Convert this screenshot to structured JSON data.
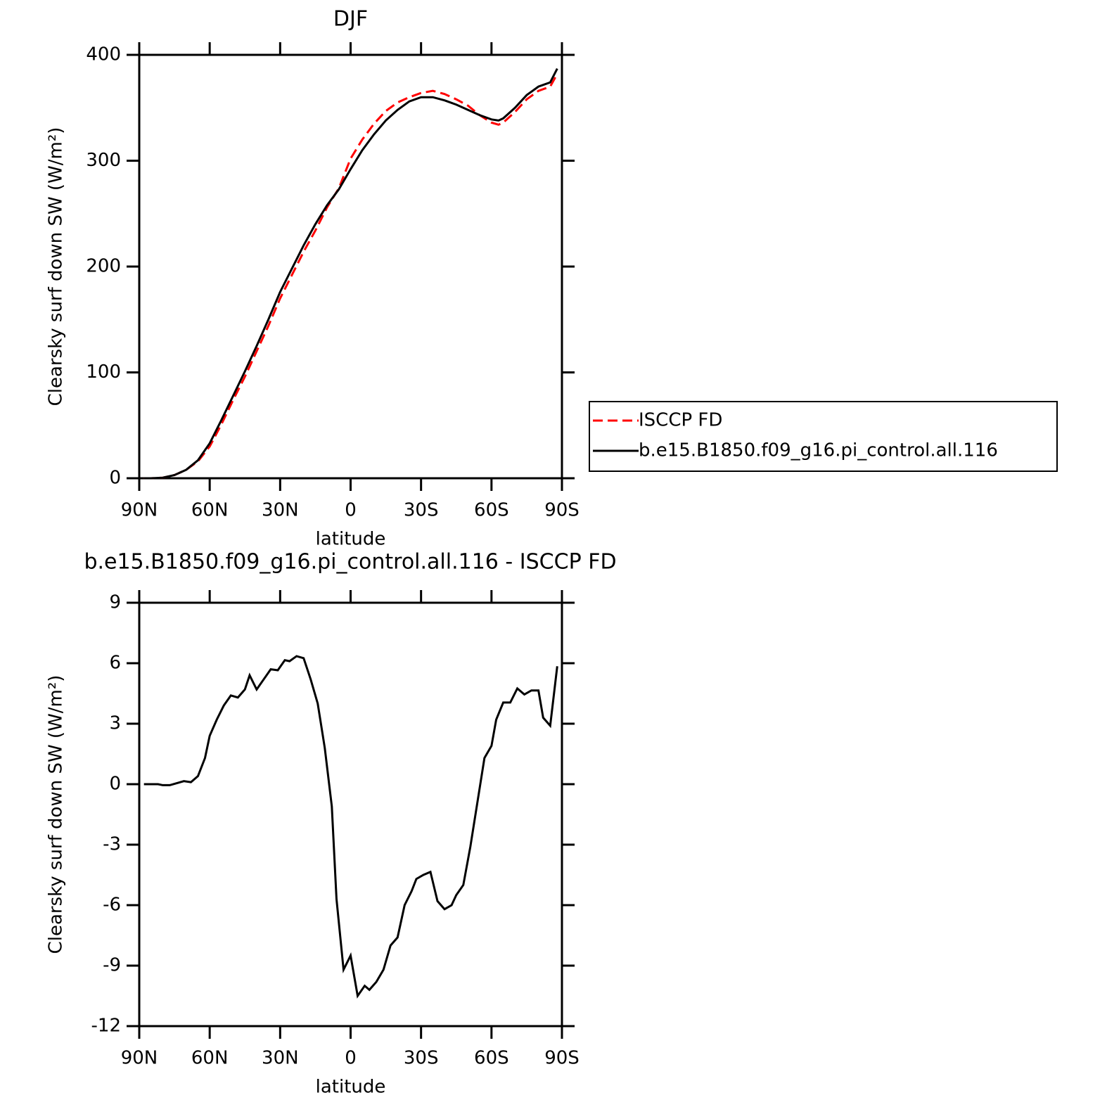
{
  "chart_data": [
    {
      "type": "line",
      "title": "DJF",
      "xlabel": "latitude",
      "ylabel": "Clearsky surf down SW (W/m²)",
      "x": [
        88,
        85,
        80,
        75,
        70,
        65,
        60,
        55,
        50,
        45,
        40,
        35,
        30,
        25,
        20,
        15,
        10,
        5,
        0,
        -5,
        -10,
        -15,
        -20,
        -25,
        -30,
        -35,
        -40,
        -45,
        -50,
        -55,
        -60,
        -63,
        -65,
        -70,
        -75,
        -80,
        -85,
        -88
      ],
      "series": [
        {
          "name": "ISCCP FD",
          "color": "#ff0000",
          "dash": true,
          "values": [
            0,
            0,
            0.5,
            3,
            8,
            16,
            30,
            51,
            74,
            96,
            120,
            144,
            170,
            192,
            214,
            234,
            256,
            274,
            302,
            320,
            335,
            347,
            355,
            360,
            364,
            366,
            363,
            358,
            352,
            343,
            336,
            334,
            336,
            346,
            358,
            366,
            370,
            382
          ]
        },
        {
          "name": "b.e15.B1850.f09_g16.pi_control.all.116",
          "color": "#000000",
          "dash": false,
          "values": [
            0,
            0,
            0.5,
            3,
            8,
            17,
            33,
            55,
            78,
            101,
            125,
            150,
            176,
            198,
            220,
            240,
            258,
            273,
            292,
            310,
            325,
            338,
            348,
            356,
            360,
            360,
            357,
            353,
            348,
            343,
            339,
            338,
            340,
            350,
            362,
            370,
            374,
            387
          ]
        }
      ],
      "xlim": [
        90,
        -90
      ],
      "xticks": [
        {
          "value": 90,
          "label": "90N"
        },
        {
          "value": 60,
          "label": "60N"
        },
        {
          "value": 30,
          "label": "30N"
        },
        0,
        {
          "value": -30,
          "label": "30S"
        },
        {
          "value": -60,
          "label": "60S"
        },
        {
          "value": -90,
          "label": "90S"
        }
      ],
      "ylim": [
        0,
        400
      ],
      "yticks": [
        0,
        100,
        200,
        300,
        400
      ],
      "legend": "right"
    },
    {
      "type": "line",
      "title": "b.e15.B1850.f09_g16.pi_control.all.116 - ISCCP FD",
      "xlabel": "latitude",
      "ylabel": "Clearsky surf down SW (W/m²)",
      "x": [
        88,
        85,
        82,
        80,
        77,
        74,
        71,
        68,
        65,
        62,
        60,
        57,
        54,
        51,
        48,
        45,
        43,
        40,
        37,
        34,
        31,
        28,
        26,
        23,
        20,
        17,
        14,
        11,
        8,
        6,
        3,
        0,
        -3,
        -6,
        -8,
        -11,
        -14,
        -17,
        -20,
        -23,
        -26,
        -28,
        -31,
        -34,
        -37,
        -40,
        -43,
        -45,
        -48,
        -51,
        -54,
        -57,
        -60,
        -62,
        -65,
        -68,
        -71,
        -74,
        -77,
        -80,
        -82,
        -85,
        -88
      ],
      "series": [
        {
          "color": "#000000",
          "dash": false,
          "values": [
            0,
            0,
            0,
            -0.05,
            -0.05,
            0.05,
            0.15,
            0.1,
            0.4,
            1.3,
            2.4,
            3.2,
            3.9,
            4.4,
            4.3,
            4.7,
            5.4,
            4.7,
            5.2,
            5.7,
            5.65,
            6.15,
            6.1,
            6.35,
            6.25,
            5.2,
            4.0,
            1.8,
            -1.1,
            -5.7,
            -9.2,
            -8.5,
            -10.5,
            -10.0,
            -10.2,
            -9.8,
            -9.2,
            -8.0,
            -7.6,
            -6.0,
            -5.3,
            -4.7,
            -4.5,
            -4.35,
            -5.8,
            -6.2,
            -6.0,
            -5.5,
            -5.0,
            -3.1,
            -0.9,
            1.3,
            1.9,
            3.2,
            4.05,
            4.05,
            4.75,
            4.45,
            4.65,
            4.65,
            3.3,
            2.9,
            5.85
          ]
        }
      ],
      "xlim": [
        90,
        -90
      ],
      "xticks": [
        {
          "value": 90,
          "label": "90N"
        },
        {
          "value": 60,
          "label": "60N"
        },
        {
          "value": 30,
          "label": "30N"
        },
        0,
        {
          "value": -30,
          "label": "30S"
        },
        {
          "value": -60,
          "label": "60S"
        },
        {
          "value": -90,
          "label": "90S"
        }
      ],
      "ylim": [
        -12,
        9
      ],
      "yticks": [
        -12,
        -9,
        -6,
        -3,
        0,
        3,
        6,
        9
      ]
    }
  ]
}
